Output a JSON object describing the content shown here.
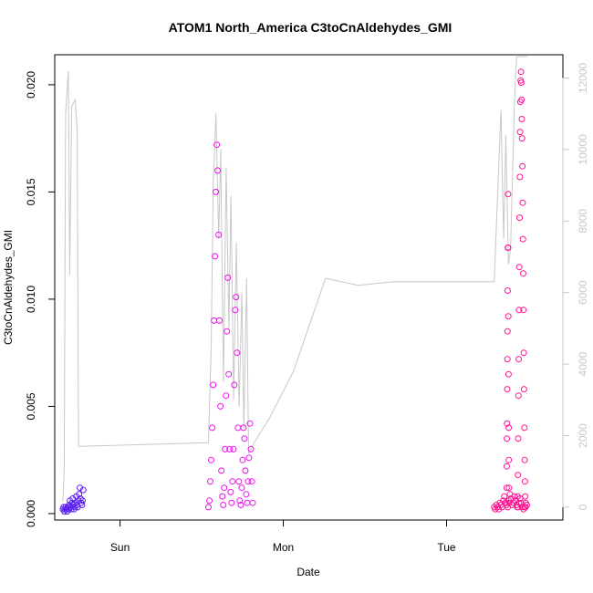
{
  "chart_data": {
    "type": "scatter",
    "title": "ATOM1 North_America C3toCnAldehydes_GMI",
    "xlabel": "Date",
    "ylabel": "C3toCnAldehydes_GMI",
    "ylim": [
      -0.0003,
      0.0214
    ],
    "y_ticks": [
      "0.000",
      "0.005",
      "0.010",
      "0.015",
      "0.020"
    ],
    "y_tick_values": [
      0,
      0.005,
      0.01,
      0.015,
      0.02
    ],
    "x_ticks": [
      "Sun",
      "Mon",
      "Tue"
    ],
    "x_tick_values": [
      0,
      24,
      48
    ],
    "x_unit": "hours from Sun 00:00",
    "xlim": [
      -9.6,
      65.1
    ],
    "y2_ticks": [
      "0",
      "2000",
      "4000",
      "6000",
      "8000",
      "10000",
      "12000"
    ],
    "y2_tick_values": [
      0,
      2000,
      4000,
      6000,
      8000,
      10000,
      12000
    ],
    "y2lim": [
      -360,
      12650
    ],
    "series": [
      {
        "color": "#5a1ef0",
        "marker": "open-circle",
        "segments": [
          {
            "x0": -8.4,
            "x1": -5.4,
            "values": [
              0.0002,
              0.0003,
              0.0001,
              0.0002,
              0.0003,
              0.0002,
              0.0001,
              0.0003,
              0.0002,
              0.0004,
              0.0006,
              0.0003,
              0.0002,
              0.0005,
              0.0007,
              0.0004,
              0.0002,
              0.0003,
              0.0005,
              0.0008,
              0.0004,
              0.0003,
              0.0006,
              0.0009,
              0.0012,
              0.0007,
              0.0005,
              0.0004,
              0.0006,
              0.0011
            ]
          }
        ]
      },
      {
        "color": "#ee11ee",
        "marker": "open-circle",
        "segments": [
          {
            "x0": 13.0,
            "x1": 19.5,
            "values": [
              0.0003,
              0.0006,
              0.0015,
              0.0025,
              0.004,
              0.006,
              0.009,
              0.012,
              0.015,
              0.0172,
              0.016,
              0.013,
              0.009,
              0.005,
              0.002,
              0.0008,
              0.0004,
              0.0012,
              0.003,
              0.0055,
              0.0085,
              0.011,
              0.0065,
              0.003,
              0.001,
              0.0005,
              0.0015,
              0.003,
              0.006,
              0.0095,
              0.0101,
              0.0075,
              0.004,
              0.0015,
              0.0006,
              0.0004,
              0.0012,
              0.0025,
              0.004,
              0.0035,
              0.002,
              0.0009,
              0.0005,
              0.0015,
              0.0026,
              0.0042,
              0.003,
              0.0015,
              0.0005
            ]
          }
        ]
      },
      {
        "color": "#ff1493",
        "marker": "open-circle",
        "segments": [
          {
            "x0": 55.0,
            "x1": 59.8,
            "values": [
              0.0003,
              0.0002,
              0.0004,
              0.0003,
              0.0002,
              0.0005,
              0.0004,
              0.0003,
              0.0006,
              0.0008,
              0.0005,
              0.0004,
              0.0003,
              0.0006,
              0.0009,
              0.0007,
              0.0004,
              0.0005,
              0.0008,
              0.0006,
              0.0004,
              0.0003,
              0.0005,
              0.0007,
              0.0005,
              0.0003,
              0.0002,
              0.0003,
              0.0005,
              0.0004
            ]
          },
          {
            "x0": 56.8,
            "x1": 57.2,
            "values": [
              0.0005,
              0.0012,
              0.0022,
              0.0035,
              0.0042,
              0.0058,
              0.0072,
              0.0085,
              0.0104,
              0.0124,
              0.0149,
              0.0124,
              0.0092,
              0.0065,
              0.004,
              0.0025,
              0.0012,
              0.0005
            ]
          },
          {
            "x0": 58.4,
            "x1": 59.6,
            "values": [
              0.0003,
              0.0008,
              0.0018,
              0.0035,
              0.0055,
              0.0072,
              0.0095,
              0.0115,
              0.0138,
              0.0157,
              0.0178,
              0.0192,
              0.0202,
              0.0206,
              0.0201,
              0.0193,
              0.0184,
              0.0175,
              0.0162,
              0.0145,
              0.0128,
              0.0112,
              0.0095,
              0.0075,
              0.0058,
              0.004,
              0.0025,
              0.0015,
              0.0008,
              0.0003
            ]
          }
        ]
      }
    ],
    "secondary_line": {
      "color": "#c8c8c8",
      "axis": "right",
      "points": [
        [
          -8.4,
          150
        ],
        [
          -8.2,
          1100
        ],
        [
          -8.0,
          11000
        ],
        [
          -7.6,
          12200
        ],
        [
          -7.4,
          6500
        ],
        [
          -7.1,
          11200
        ],
        [
          -6.6,
          11400
        ],
        [
          -6.3,
          10500
        ],
        [
          -6.1,
          1700
        ],
        [
          -5.9,
          1700
        ],
        [
          13.0,
          1800
        ],
        [
          13.4,
          4500
        ],
        [
          13.7,
          9000
        ],
        [
          14.1,
          11000
        ],
        [
          14.5,
          7500
        ],
        [
          14.8,
          10000
        ],
        [
          15.2,
          3500
        ],
        [
          15.6,
          9500
        ],
        [
          16.0,
          5000
        ],
        [
          16.3,
          8700
        ],
        [
          16.7,
          3000
        ],
        [
          17.1,
          7400
        ],
        [
          17.5,
          2800
        ],
        [
          17.9,
          6000
        ],
        [
          18.2,
          2200
        ],
        [
          18.6,
          6400
        ],
        [
          18.9,
          1500
        ],
        [
          19.4,
          1700
        ],
        [
          22.0,
          2500
        ],
        [
          25.5,
          3800
        ],
        [
          30.2,
          6400
        ],
        [
          35.0,
          6200
        ],
        [
          40.0,
          6300
        ],
        [
          50.5,
          6300
        ],
        [
          55.0,
          6300
        ],
        [
          56.0,
          11100
        ],
        [
          56.4,
          7500
        ],
        [
          56.7,
          10400
        ],
        [
          57.1,
          6800
        ],
        [
          57.4,
          7200
        ],
        [
          58.0,
          11500
        ],
        [
          58.3,
          12600
        ],
        [
          59.4,
          12600
        ],
        [
          59.9,
          12600
        ]
      ]
    }
  }
}
